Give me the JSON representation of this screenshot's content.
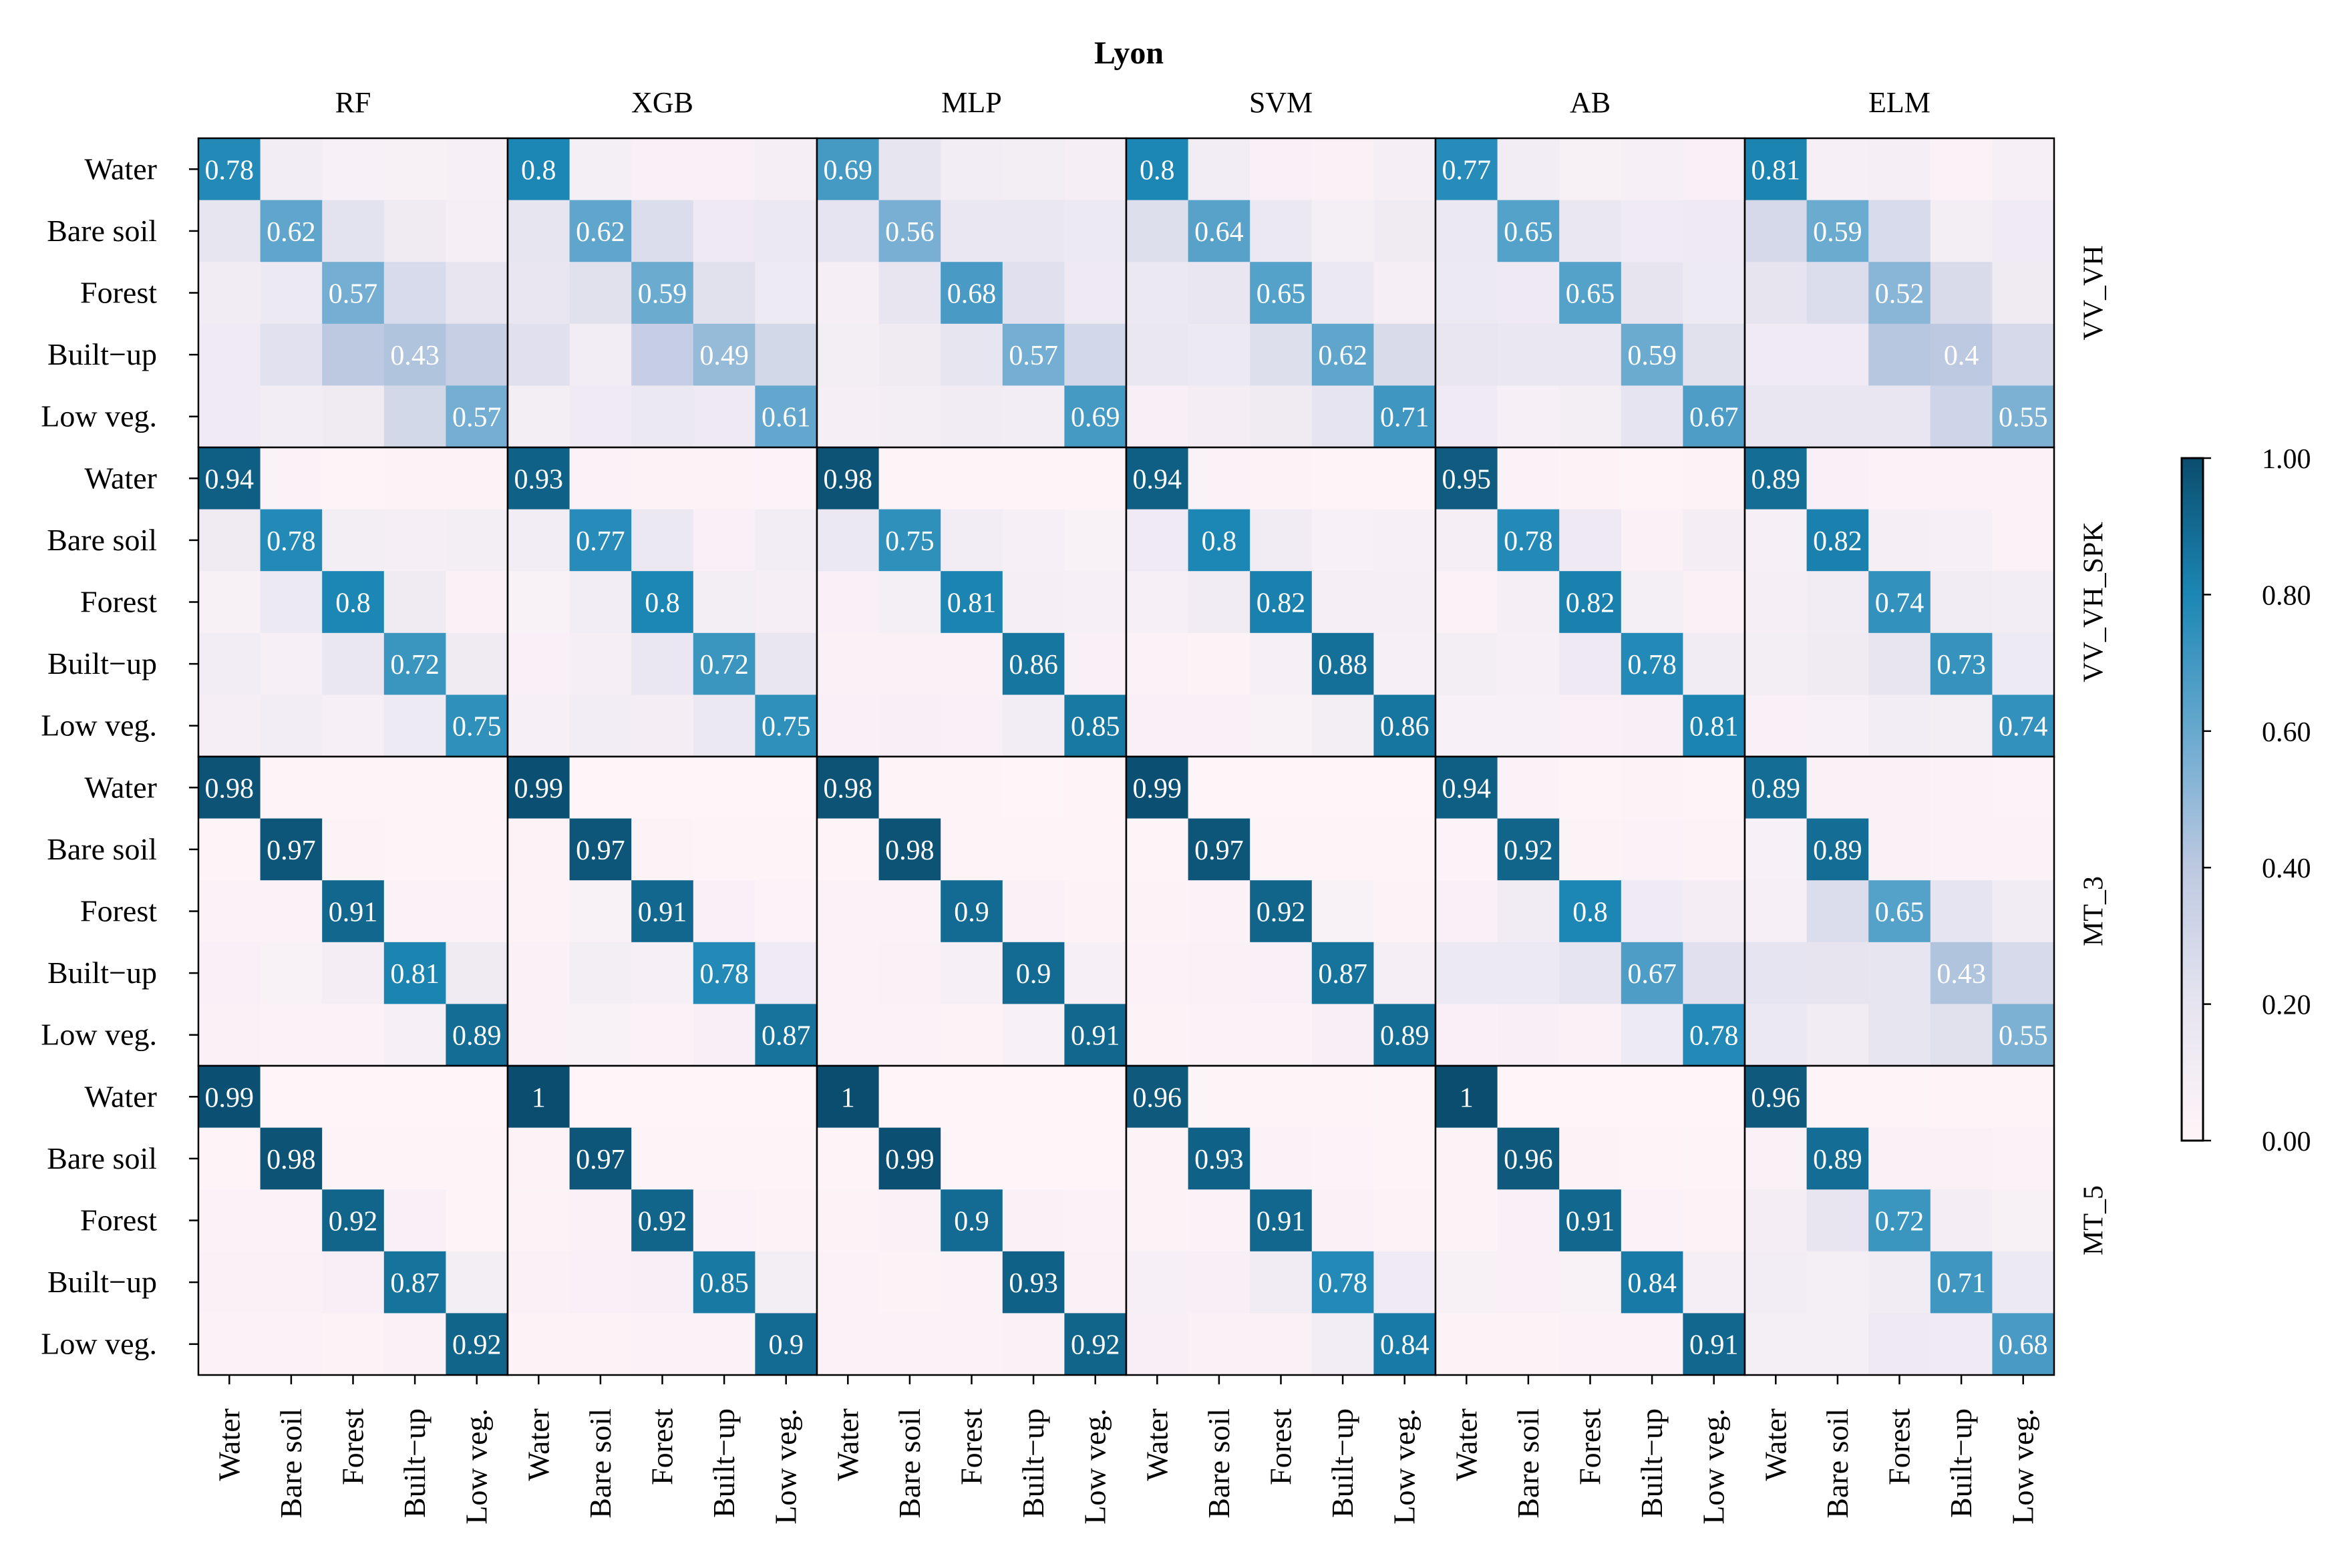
{
  "chart_data": {
    "type": "heatmap",
    "title": "Lyon",
    "classes": [
      "Water",
      "Bare soil",
      "Forest",
      "Built−up",
      "Low veg."
    ],
    "columns": [
      "RF",
      "XGB",
      "MLP",
      "SVM",
      "AB",
      "ELM"
    ],
    "rows": [
      "VV_VH",
      "VV_VH_SPK",
      "MT_3",
      "MT_5"
    ],
    "colorbar": {
      "min": 0,
      "max": 1,
      "ticks": [
        "0.00",
        "0.20",
        "0.40",
        "0.60",
        "0.80",
        "1.00"
      ],
      "colors": [
        "#fff5f8",
        "#e6e4f0",
        "#bdc9e1",
        "#67a9cf",
        "#1c87b5",
        "#0a4d6e"
      ]
    },
    "diagonal_values": [
      [
        [
          0.78,
          0.62,
          0.57,
          0.43,
          0.57
        ],
        [
          0.8,
          0.62,
          0.59,
          0.49,
          0.61
        ],
        [
          0.69,
          0.56,
          0.68,
          0.57,
          0.69
        ],
        [
          0.8,
          0.64,
          0.65,
          0.62,
          0.71
        ],
        [
          0.77,
          0.65,
          0.65,
          0.59,
          0.67
        ],
        [
          0.81,
          0.59,
          0.52,
          0.4,
          0.55
        ]
      ],
      [
        [
          0.94,
          0.78,
          0.8,
          0.72,
          0.75
        ],
        [
          0.93,
          0.77,
          0.8,
          0.72,
          0.75
        ],
        [
          0.98,
          0.75,
          0.81,
          0.86,
          0.85
        ],
        [
          0.94,
          0.8,
          0.82,
          0.88,
          0.86
        ],
        [
          0.95,
          0.78,
          0.82,
          0.78,
          0.81
        ],
        [
          0.89,
          0.82,
          0.74,
          0.73,
          0.74
        ]
      ],
      [
        [
          0.98,
          0.97,
          0.91,
          0.81,
          0.89
        ],
        [
          0.99,
          0.97,
          0.91,
          0.78,
          0.87
        ],
        [
          0.98,
          0.98,
          0.9,
          0.9,
          0.91
        ],
        [
          0.99,
          0.97,
          0.92,
          0.87,
          0.89
        ],
        [
          0.94,
          0.92,
          0.8,
          0.67,
          0.78
        ],
        [
          0.89,
          0.89,
          0.65,
          0.43,
          0.55
        ]
      ],
      [
        [
          0.99,
          0.98,
          0.92,
          0.87,
          0.92
        ],
        [
          1,
          0.97,
          0.92,
          0.85,
          0.9
        ],
        [
          1,
          0.99,
          0.9,
          0.93,
          0.92
        ],
        [
          0.96,
          0.93,
          0.91,
          0.78,
          0.84
        ],
        [
          1,
          0.96,
          0.91,
          0.84,
          0.91
        ],
        [
          0.96,
          0.89,
          0.72,
          0.71,
          0.68
        ]
      ]
    ],
    "diagonal_labels": [
      [
        [
          "0.78",
          "0.62",
          "0.57",
          "0.43",
          "0.57"
        ],
        [
          "0.8",
          "0.62",
          "0.59",
          "0.49",
          "0.61"
        ],
        [
          "0.69",
          "0.56",
          "0.68",
          "0.57",
          "0.69"
        ],
        [
          "0.8",
          "0.64",
          "0.65",
          "0.62",
          "0.71"
        ],
        [
          "0.77",
          "0.65",
          "0.65",
          "0.59",
          "0.67"
        ],
        [
          "0.81",
          "0.59",
          "0.52",
          "0.4",
          "0.55"
        ]
      ],
      [
        [
          "0.94",
          "0.78",
          "0.8",
          "0.72",
          "0.75"
        ],
        [
          "0.93",
          "0.77",
          "0.8",
          "0.72",
          "0.75"
        ],
        [
          "0.98",
          "0.75",
          "0.81",
          "0.86",
          "0.85"
        ],
        [
          "0.94",
          "0.8",
          "0.82",
          "0.88",
          "0.86"
        ],
        [
          "0.95",
          "0.78",
          "0.82",
          "0.78",
          "0.81"
        ],
        [
          "0.89",
          "0.82",
          "0.74",
          "0.73",
          "0.74"
        ]
      ],
      [
        [
          "0.98",
          "0.97",
          "0.91",
          "0.81",
          "0.89"
        ],
        [
          "0.99",
          "0.97",
          "0.91",
          "0.78",
          "0.87"
        ],
        [
          "0.98",
          "0.98",
          "0.9",
          "0.9",
          "0.91"
        ],
        [
          "0.99",
          "0.97",
          "0.92",
          "0.87",
          "0.89"
        ],
        [
          "0.94",
          "0.92",
          "0.8",
          "0.67",
          "0.78"
        ],
        [
          "0.89",
          "0.89",
          "0.65",
          "0.43",
          "0.55"
        ]
      ],
      [
        [
          "0.99",
          "0.98",
          "0.92",
          "0.87",
          "0.92"
        ],
        [
          "1",
          "0.97",
          "0.92",
          "0.85",
          "0.9"
        ],
        [
          "1",
          "0.99",
          "0.9",
          "0.93",
          "0.92"
        ],
        [
          "0.96",
          "0.93",
          "0.91",
          "0.78",
          "0.84"
        ],
        [
          "1",
          "0.96",
          "0.91",
          "0.84",
          "0.91"
        ],
        [
          "0.96",
          "0.89",
          "0.72",
          "0.71",
          "0.68"
        ]
      ]
    ]
  }
}
